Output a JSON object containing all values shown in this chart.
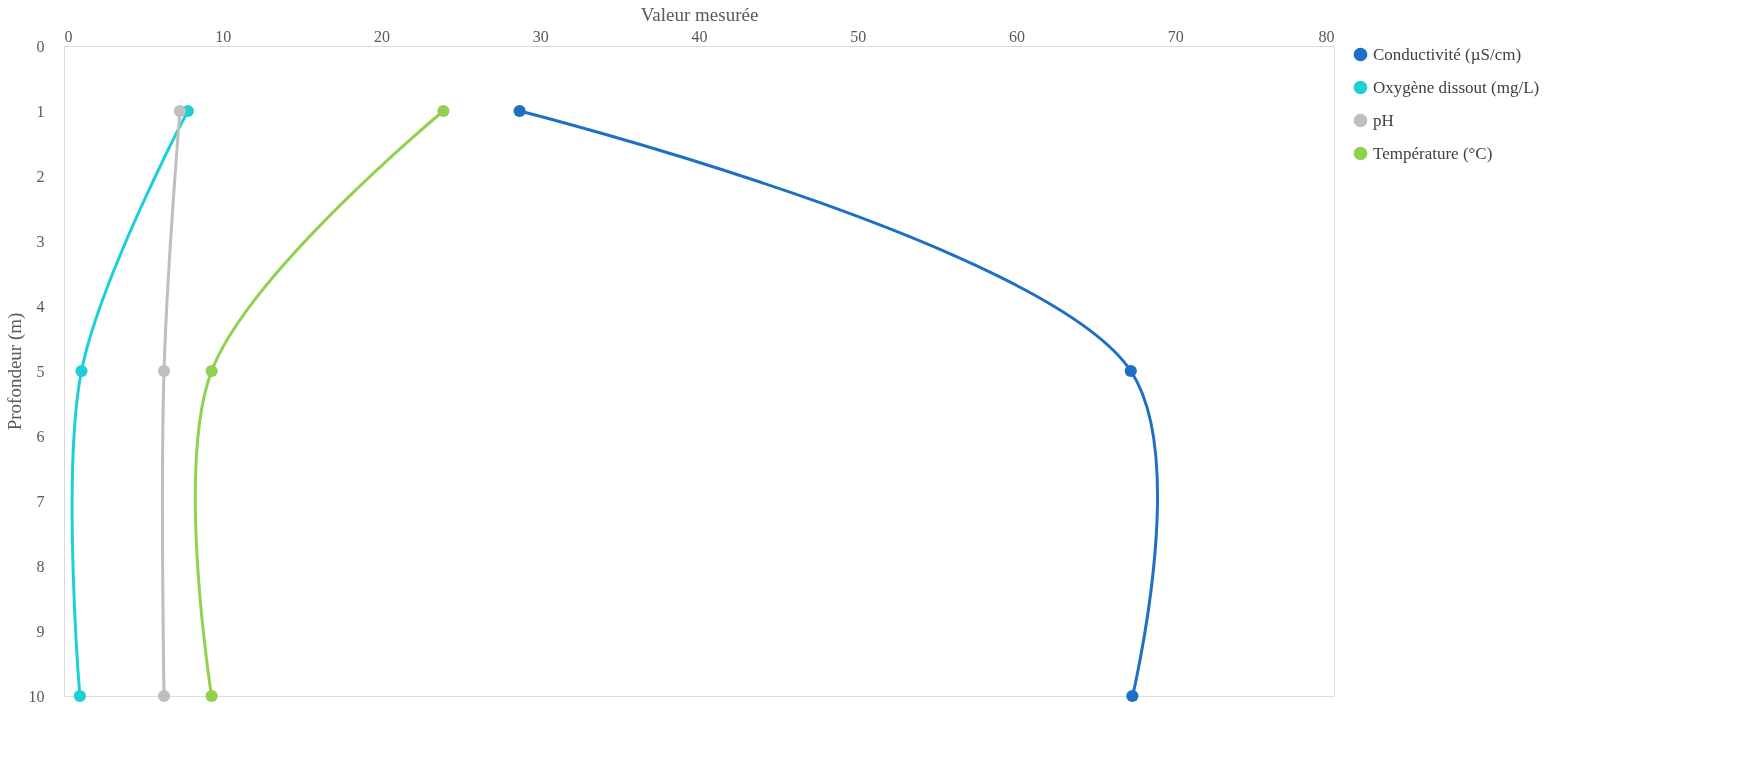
{
  "chart_data": {
    "type": "line",
    "xlabel": "Valeur mesurée",
    "ylabel": "Profondeur (m)",
    "xlim": [
      0,
      80
    ],
    "xticks": [
      0,
      10,
      20,
      30,
      40,
      50,
      60,
      70,
      80
    ],
    "ylim": [
      10,
      0
    ],
    "yticks": [
      0,
      1,
      2,
      3,
      4,
      5,
      6,
      7,
      8,
      9,
      10
    ],
    "grid": false,
    "legend": "right",
    "marker": "circle",
    "line_style": "solid",
    "series": [
      {
        "name": "Conductivité (µS/cm)",
        "color": "#1f6fc5",
        "x": [
          28.7,
          67.2,
          67.3
        ],
        "values": [
          1,
          5,
          10
        ]
      },
      {
        "name": "Oxygène dissout (mg/L)",
        "color": "#1fcfd8",
        "x": [
          7.8,
          1.1,
          1.0
        ],
        "values": [
          1,
          5,
          10
        ]
      },
      {
        "name": "pH",
        "color": "#bfbfbf",
        "x": [
          7.3,
          6.3,
          6.3
        ],
        "values": [
          1,
          5,
          10
        ]
      },
      {
        "name": "Température (°C)",
        "color": "#92d050",
        "x": [
          23.9,
          9.3,
          9.3
        ],
        "values": [
          1,
          5,
          10
        ]
      }
    ]
  }
}
